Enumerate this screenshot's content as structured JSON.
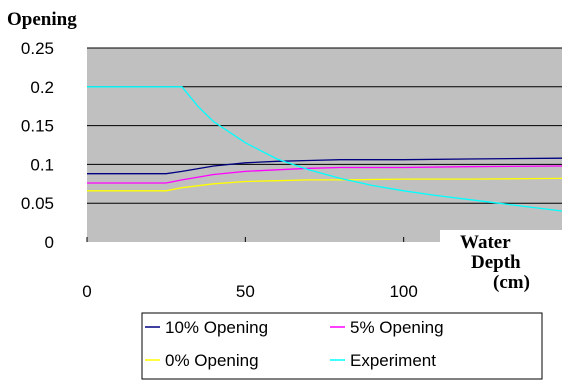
{
  "chart_data": {
    "type": "line",
    "ylabel": "Opening",
    "xlabel_lines": [
      "Water",
      "Depth",
      "(cm)"
    ],
    "xlim": [
      0,
      150
    ],
    "ylim": [
      0,
      0.25
    ],
    "x_ticks": [
      0,
      50,
      100
    ],
    "x_tick_labels": [
      "0",
      "50",
      "100"
    ],
    "y_ticks": [
      0,
      0.05,
      0.1,
      0.15,
      0.2,
      0.25
    ],
    "y_tick_labels": [
      "0",
      "0.05",
      "0.1",
      "0.15",
      "0.2",
      "0.25"
    ],
    "grid": "horizontal",
    "plot_background": "#c0c0c0",
    "legend_position": "bottom",
    "series": [
      {
        "name": "10% Opening",
        "color": "#000080",
        "x": [
          0,
          25,
          30,
          40,
          50,
          60,
          70,
          80,
          100,
          120,
          150
        ],
        "y": [
          0.088,
          0.088,
          0.091,
          0.098,
          0.102,
          0.104,
          0.105,
          0.106,
          0.106,
          0.107,
          0.108
        ]
      },
      {
        "name": "5% Opening",
        "color": "#ff00ff",
        "x": [
          0,
          25,
          30,
          40,
          50,
          60,
          70,
          80,
          100,
          120,
          150
        ],
        "y": [
          0.076,
          0.076,
          0.08,
          0.087,
          0.091,
          0.093,
          0.095,
          0.096,
          0.096,
          0.097,
          0.098
        ]
      },
      {
        "name": "0% Opening",
        "color": "#ffff00",
        "x": [
          0,
          25,
          30,
          40,
          50,
          60,
          70,
          80,
          100,
          120,
          150
        ],
        "y": [
          0.066,
          0.066,
          0.07,
          0.075,
          0.078,
          0.079,
          0.08,
          0.08,
          0.081,
          0.081,
          0.082
        ]
      },
      {
        "name": "Experiment",
        "color": "#00ffff",
        "x": [
          0,
          10,
          20,
          30,
          35,
          40,
          50,
          60,
          70,
          80,
          90,
          100,
          110,
          120,
          130,
          140,
          150
        ],
        "y": [
          0.2,
          0.2,
          0.2,
          0.2,
          0.175,
          0.155,
          0.128,
          0.107,
          0.093,
          0.082,
          0.073,
          0.066,
          0.06,
          0.055,
          0.05,
          0.045,
          0.04
        ]
      }
    ]
  }
}
